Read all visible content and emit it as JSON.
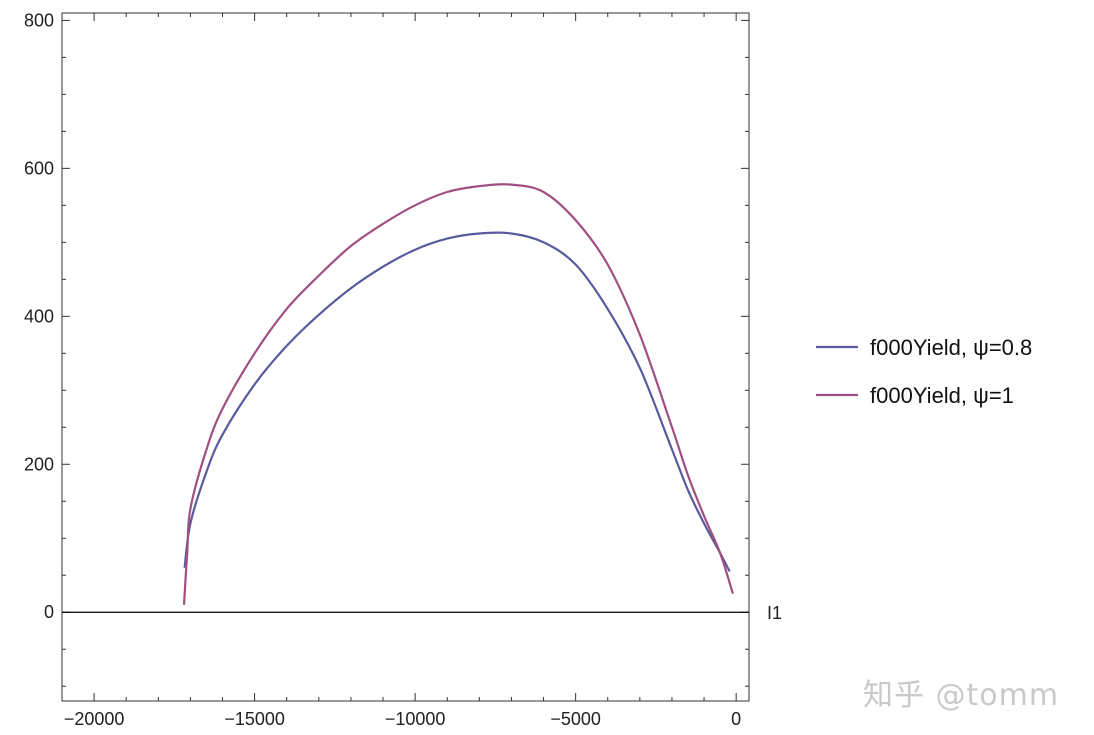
{
  "chart_data": {
    "type": "line",
    "title": "",
    "xlabel": "I1",
    "ylabel": "",
    "xlim": [
      -21000,
      400
    ],
    "ylim": [
      -120,
      810
    ],
    "x_ticks": [
      -20000,
      -15000,
      -10000,
      -5000,
      0
    ],
    "x_tick_labels": [
      "−20000",
      "−15000",
      "−10000",
      "−5000",
      "0"
    ],
    "y_ticks": [
      0,
      200,
      400,
      600,
      800
    ],
    "y_tick_labels": [
      "0",
      "200",
      "400",
      "600",
      "800"
    ],
    "grid": false,
    "legend_position": "right",
    "series": [
      {
        "name": "f000Yield, ψ=0.8",
        "color": "#5a5a9e",
        "x": [
          -17180,
          -17000,
          -16500,
          -16000,
          -15000,
          -14000,
          -13000,
          -12000,
          -11000,
          -10000,
          -9000,
          -8000,
          -7000,
          -6000,
          -5000,
          -4000,
          -3000,
          -2000,
          -1500,
          -1000,
          -500,
          -200
        ],
        "y": [
          60,
          120,
          190,
          240,
          308,
          360,
          402,
          438,
          467,
          490,
          505,
          512,
          512,
          500,
          470,
          410,
          330,
          220,
          165,
          120,
          80,
          55
        ]
      },
      {
        "name": "f000Yield, ψ=1",
        "color": "#a05080",
        "x": [
          -17200,
          -17100,
          -17000,
          -16500,
          -16000,
          -15000,
          -14000,
          -13000,
          -12000,
          -11000,
          -10000,
          -9000,
          -8000,
          -7000,
          -6000,
          -5000,
          -4000,
          -3000,
          -2000,
          -1500,
          -1000,
          -500,
          -100
        ],
        "y": [
          10,
          80,
          140,
          220,
          275,
          350,
          410,
          455,
          495,
          525,
          550,
          568,
          576,
          578,
          568,
          530,
          470,
          375,
          250,
          185,
          130,
          80,
          25
        ]
      }
    ]
  },
  "watermark": "知乎 @tomm"
}
